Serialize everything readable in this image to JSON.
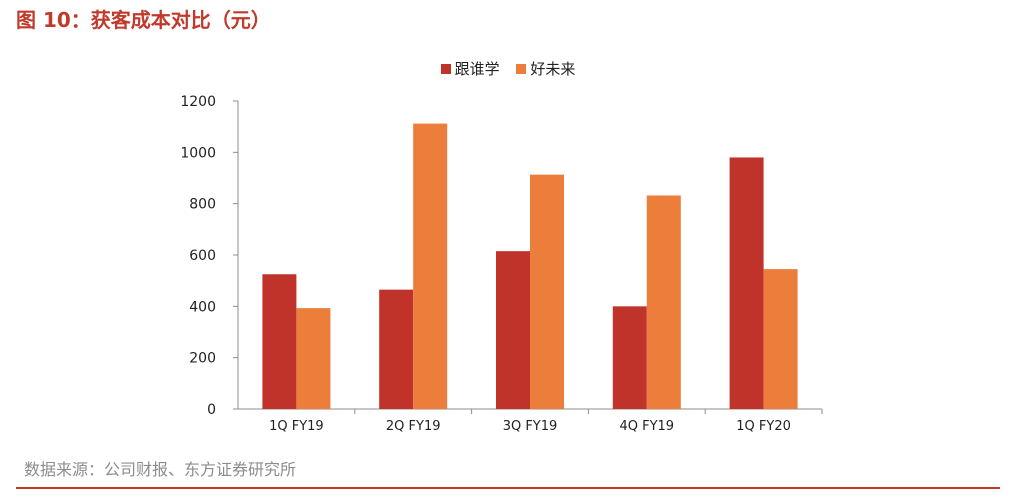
{
  "title": "图 10：获客成本对比（元）",
  "source": "数据来源：公司财报、东方证券研究所",
  "colors": {
    "accent": "#c0392b",
    "series1": "#c0332b",
    "series2": "#ed7d3a"
  },
  "chart_data": {
    "type": "bar",
    "title": "",
    "xlabel": "",
    "ylabel": "",
    "categories": [
      "1Q FY19",
      "2Q FY19",
      "3Q FY19",
      "4Q FY19",
      "1Q FY20"
    ],
    "series": [
      {
        "name": "跟谁学",
        "values": [
          525,
          465,
          615,
          400,
          980
        ],
        "color": "#c0332b"
      },
      {
        "name": "好未来",
        "values": [
          393,
          1112,
          913,
          832,
          545
        ],
        "color": "#ed7d3a"
      }
    ],
    "ylim": [
      0,
      1200
    ],
    "yticks": [
      "0",
      "200",
      "400",
      "600",
      "800",
      "1000",
      "1200"
    ],
    "grid": false,
    "legend": "top-center"
  }
}
